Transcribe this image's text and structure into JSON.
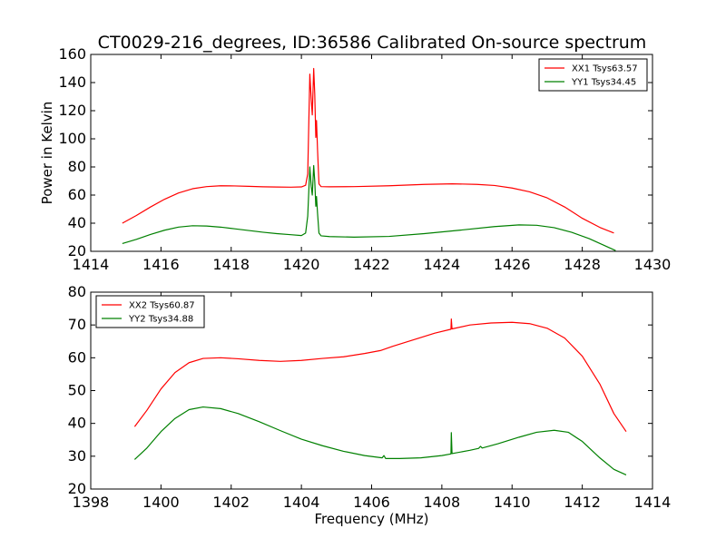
{
  "figure": {
    "title": "CT0029-216_degrees, ID:36586 Calibrated On-source spectrum"
  },
  "chart_data": [
    {
      "type": "line",
      "title": "CT0029-216_degrees, ID:36586 Calibrated On-source spectrum",
      "xlabel": "",
      "ylabel": "Power in Kelvin",
      "xlim": [
        1414,
        1430
      ],
      "ylim": [
        20,
        160
      ],
      "xticks": [
        1414,
        1416,
        1418,
        1420,
        1422,
        1424,
        1426,
        1428,
        1430
      ],
      "yticks": [
        20,
        40,
        60,
        80,
        100,
        120,
        140,
        160
      ],
      "grid": false,
      "legend_position": "top-right",
      "series": [
        {
          "name": "XX1 Tsys63.57",
          "color": "#ff0000",
          "points": [
            [
              1414.9,
              40
            ],
            [
              1415.3,
              45.5
            ],
            [
              1415.7,
              51.5
            ],
            [
              1416.1,
              57
            ],
            [
              1416.5,
              61.5
            ],
            [
              1416.9,
              64.5
            ],
            [
              1417.3,
              66
            ],
            [
              1417.7,
              66.6
            ],
            [
              1418.1,
              66.5
            ],
            [
              1418.5,
              66.2
            ],
            [
              1418.9,
              65.9
            ],
            [
              1419.3,
              65.7
            ],
            [
              1419.7,
              65.6
            ],
            [
              1420.0,
              65.8
            ],
            [
              1420.12,
              67
            ],
            [
              1420.18,
              75
            ],
            [
              1420.24,
              146
            ],
            [
              1420.28,
              128
            ],
            [
              1420.31,
              117
            ],
            [
              1420.35,
              150
            ],
            [
              1420.38,
              132
            ],
            [
              1420.41,
              101
            ],
            [
              1420.43,
              113
            ],
            [
              1420.46,
              92
            ],
            [
              1420.5,
              68
            ],
            [
              1420.56,
              66
            ],
            [
              1420.8,
              65.9
            ],
            [
              1421.5,
              66
            ],
            [
              1422.5,
              66.6
            ],
            [
              1423.5,
              67.6
            ],
            [
              1424.3,
              68
            ],
            [
              1425,
              67.6
            ],
            [
              1425.5,
              66.8
            ],
            [
              1426,
              65
            ],
            [
              1426.5,
              62.3
            ],
            [
              1427,
              58
            ],
            [
              1427.5,
              51.5
            ],
            [
              1428,
              43.5
            ],
            [
              1428.5,
              37
            ],
            [
              1428.9,
              33
            ]
          ]
        },
        {
          "name": "YY1 Tsys34.45",
          "color": "#008000",
          "points": [
            [
              1414.9,
              25.5
            ],
            [
              1415.3,
              28.5
            ],
            [
              1415.7,
              32
            ],
            [
              1416.1,
              35
            ],
            [
              1416.5,
              37.2
            ],
            [
              1416.9,
              38.2
            ],
            [
              1417.3,
              38
            ],
            [
              1417.7,
              37.2
            ],
            [
              1418.1,
              36
            ],
            [
              1418.5,
              34.8
            ],
            [
              1418.9,
              33.6
            ],
            [
              1419.3,
              32.6
            ],
            [
              1419.7,
              31.8
            ],
            [
              1420.0,
              31.2
            ],
            [
              1420.12,
              33
            ],
            [
              1420.18,
              45
            ],
            [
              1420.24,
              80
            ],
            [
              1420.28,
              66
            ],
            [
              1420.31,
              60
            ],
            [
              1420.35,
              81
            ],
            [
              1420.38,
              70
            ],
            [
              1420.41,
              52
            ],
            [
              1420.43,
              59
            ],
            [
              1420.46,
              47
            ],
            [
              1420.5,
              33
            ],
            [
              1420.56,
              31
            ],
            [
              1420.8,
              30.5
            ],
            [
              1421.5,
              30.1
            ],
            [
              1422.5,
              30.6
            ],
            [
              1423.5,
              32.6
            ],
            [
              1424.5,
              35
            ],
            [
              1425.5,
              37.6
            ],
            [
              1426.2,
              38.8
            ],
            [
              1426.7,
              38.5
            ],
            [
              1427.2,
              36.8
            ],
            [
              1427.7,
              33.5
            ],
            [
              1428.2,
              29
            ],
            [
              1428.6,
              24.5
            ],
            [
              1428.95,
              20.5
            ]
          ]
        }
      ]
    },
    {
      "type": "line",
      "title": "",
      "xlabel": "Frequency (MHz)",
      "ylabel": "",
      "xlim": [
        1398,
        1414
      ],
      "ylim": [
        20,
        80
      ],
      "xticks": [
        1398,
        1400,
        1402,
        1404,
        1406,
        1408,
        1410,
        1412,
        1414
      ],
      "yticks": [
        20,
        30,
        40,
        50,
        60,
        70,
        80
      ],
      "grid": false,
      "legend_position": "top-left",
      "series": [
        {
          "name": "XX2 Tsys60.87",
          "color": "#ff0000",
          "points": [
            [
              1399.25,
              39
            ],
            [
              1399.6,
              44
            ],
            [
              1400,
              50.5
            ],
            [
              1400.4,
              55.5
            ],
            [
              1400.8,
              58.5
            ],
            [
              1401.2,
              59.8
            ],
            [
              1401.7,
              60
            ],
            [
              1402.2,
              59.7
            ],
            [
              1402.8,
              59.2
            ],
            [
              1403.4,
              58.9
            ],
            [
              1404,
              59.2
            ],
            [
              1404.6,
              59.8
            ],
            [
              1405.2,
              60.3
            ],
            [
              1405.8,
              61.3
            ],
            [
              1406.25,
              62.2
            ],
            [
              1406.6,
              63.5
            ],
            [
              1407.2,
              65.5
            ],
            [
              1407.8,
              67.5
            ],
            [
              1408.26,
              68.7
            ],
            [
              1408.27,
              71.8
            ],
            [
              1408.29,
              68.8
            ],
            [
              1408.8,
              70
            ],
            [
              1409.4,
              70.6
            ],
            [
              1410,
              70.8
            ],
            [
              1410.5,
              70.4
            ],
            [
              1411,
              69
            ],
            [
              1411.5,
              66
            ],
            [
              1412,
              60.5
            ],
            [
              1412.5,
              52
            ],
            [
              1412.9,
              43
            ],
            [
              1413.25,
              37.5
            ]
          ]
        },
        {
          "name": "YY2 Tsys34.88",
          "color": "#008000",
          "points": [
            [
              1399.25,
              29
            ],
            [
              1399.6,
              32.5
            ],
            [
              1400,
              37.5
            ],
            [
              1400.4,
              41.5
            ],
            [
              1400.8,
              44.2
            ],
            [
              1401.2,
              45
            ],
            [
              1401.7,
              44.5
            ],
            [
              1402.2,
              43
            ],
            [
              1402.8,
              40.5
            ],
            [
              1403.4,
              37.8
            ],
            [
              1404,
              35.2
            ],
            [
              1404.6,
              33.2
            ],
            [
              1405.2,
              31.5
            ],
            [
              1405.8,
              30.2
            ],
            [
              1406.3,
              29.5
            ],
            [
              1406.35,
              30.2
            ],
            [
              1406.4,
              29.3
            ],
            [
              1406.8,
              29.3
            ],
            [
              1407.4,
              29.5
            ],
            [
              1408,
              30.2
            ],
            [
              1408.26,
              30.7
            ],
            [
              1408.27,
              37.2
            ],
            [
              1408.29,
              30.8
            ],
            [
              1408.8,
              31.8
            ],
            [
              1409.05,
              32.4
            ],
            [
              1409.1,
              33
            ],
            [
              1409.15,
              32.5
            ],
            [
              1409.6,
              33.8
            ],
            [
              1410.2,
              35.8
            ],
            [
              1410.7,
              37.3
            ],
            [
              1411.2,
              37.9
            ],
            [
              1411.6,
              37.3
            ],
            [
              1412,
              34.5
            ],
            [
              1412.5,
              29.5
            ],
            [
              1412.9,
              26
            ],
            [
              1413.25,
              24.3
            ]
          ]
        }
      ]
    }
  ]
}
